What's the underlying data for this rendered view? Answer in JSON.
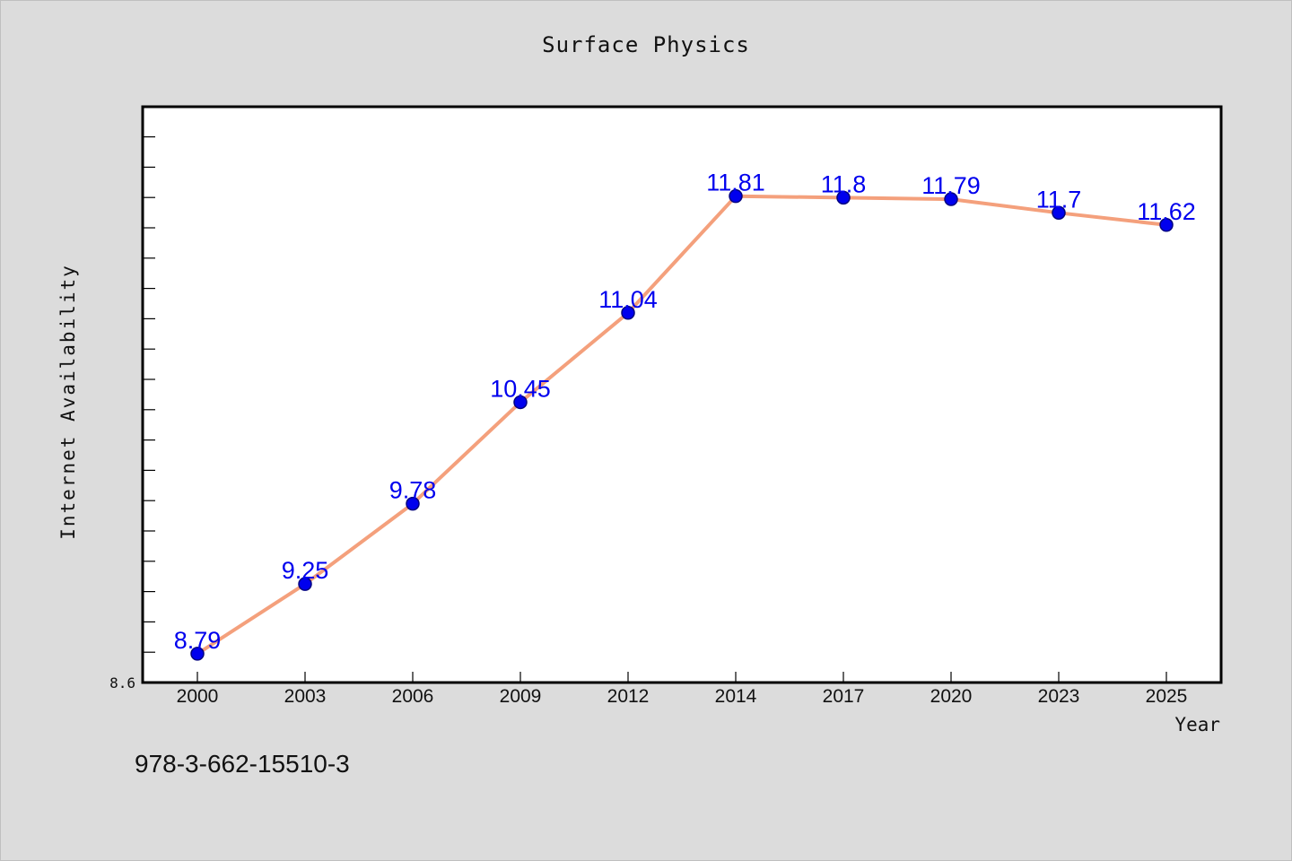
{
  "chart_data": {
    "type": "line",
    "title": "Surface Physics",
    "xlabel": "Year",
    "ylabel": "Internet Availability",
    "categories": [
      "2000",
      "2003",
      "2006",
      "2009",
      "2012",
      "2014",
      "2017",
      "2020",
      "2023",
      "2025"
    ],
    "series": [
      {
        "values": [
          8.79,
          9.25,
          9.78,
          10.45,
          11.04,
          11.81,
          11.8,
          11.79,
          11.7,
          11.62
        ]
      }
    ],
    "data_labels": [
      "8.79",
      "9.25",
      "9.78",
      "10.45",
      "11.04",
      "11.81",
      "11.8",
      "11.79",
      "11.7",
      "11.62"
    ],
    "ylim": [
      8.6,
      12.4
    ],
    "y_tick_label": "8.6",
    "grid": false,
    "colors": {
      "line": "#f4a07c",
      "marker": "#0000ee",
      "marker_edge": "#000080",
      "data_label": "#0000ee"
    }
  },
  "footer_text": "978-3-662-15510-3"
}
